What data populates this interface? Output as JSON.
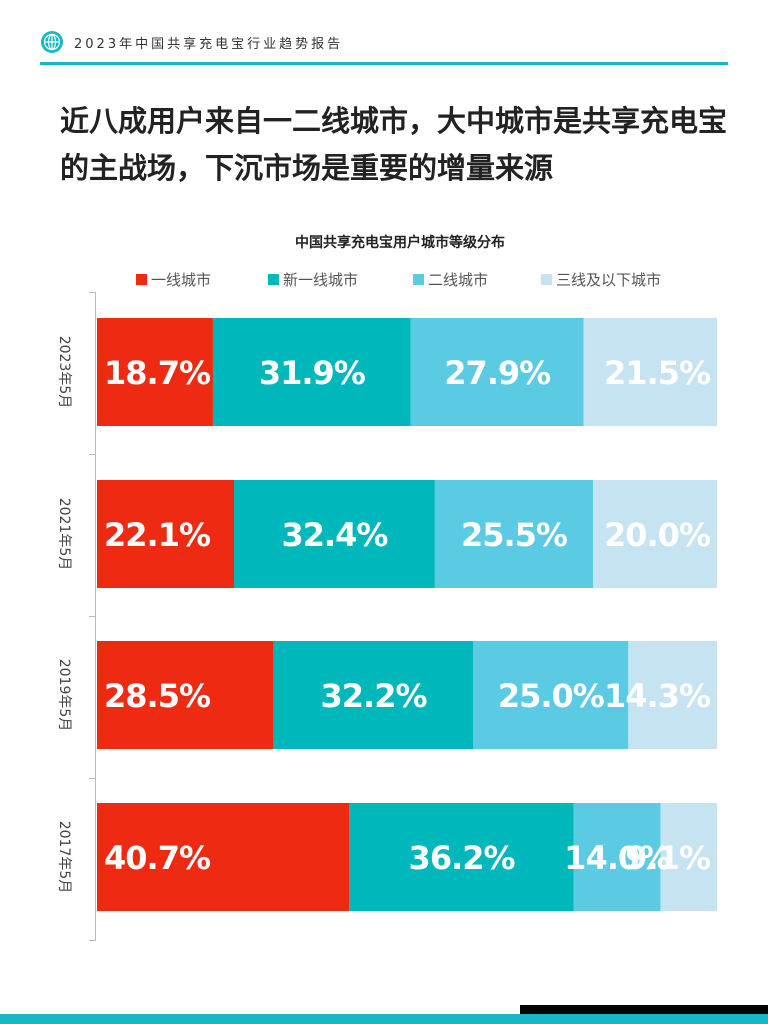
{
  "header": {
    "report_title": "2023年中国共享充电宝行业趋势报告"
  },
  "headline": {
    "line1": "近八成用户来自一二线城市，大中城市是共享充电宝",
    "line2": "的主战场，下沉市场是重要的增量来源"
  },
  "colors": {
    "accent": "#17b8c3",
    "tier1": "#ef2a12",
    "new_tier1": "#00b7bb",
    "tier2": "#5bcbe3",
    "tier3": "#c6e3f1"
  },
  "icons": [
    "globe-logo-icon"
  ],
  "chart_data": {
    "type": "bar",
    "orientation": "horizontal",
    "stacked": true,
    "title": "中国共享充电宝用户城市等级分布",
    "legend_position": "top",
    "categories": [
      "2023年5月",
      "2021年5月",
      "2019年5月",
      "2017年5月"
    ],
    "series": [
      {
        "name": "一线城市",
        "color": "#ef2a12",
        "values": [
          18.7,
          22.1,
          28.5,
          40.7
        ],
        "labels": [
          "18.7%",
          "22.1%",
          "28.5%",
          "40.7%"
        ]
      },
      {
        "name": "新一线城市",
        "color": "#00b7bb",
        "values": [
          31.9,
          32.4,
          32.2,
          36.2
        ],
        "labels": [
          "31.9%",
          "32.4%",
          "32.2%",
          "36.2%"
        ]
      },
      {
        "name": "二线城市",
        "color": "#5bcbe3",
        "values": [
          27.9,
          25.5,
          25.0,
          14.0
        ],
        "labels": [
          "27.9%",
          "25.5%",
          "25.0%",
          "14.0%"
        ]
      },
      {
        "name": "三线及以下城市",
        "color": "#c6e3f1",
        "values": [
          21.5,
          20.0,
          14.3,
          9.1
        ],
        "labels": [
          "21.5%",
          "20.0%",
          "14.3%",
          "9.1%"
        ]
      }
    ],
    "xlim": [
      0,
      100
    ]
  }
}
